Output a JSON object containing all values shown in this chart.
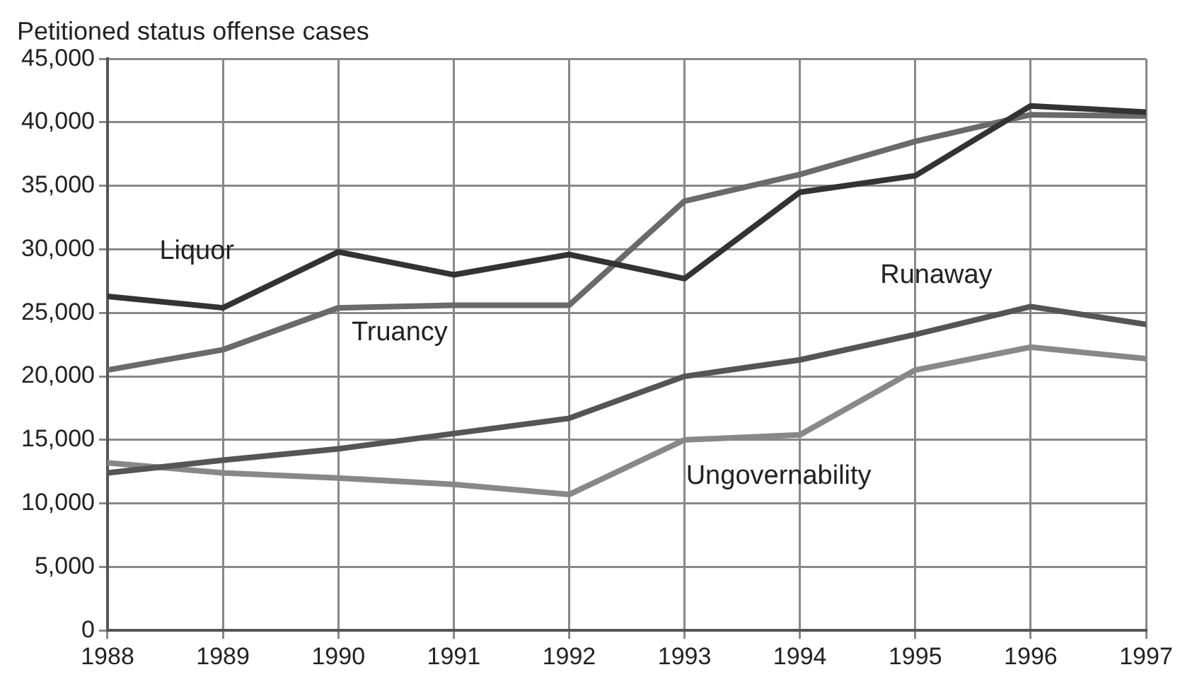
{
  "chart_data": {
    "type": "line",
    "title": "Petitioned status offense cases",
    "x": [
      1988,
      1989,
      1990,
      1991,
      1992,
      1993,
      1994,
      1995,
      1996,
      1997
    ],
    "xlim": [
      1988,
      1997
    ],
    "xticks": [
      1988,
      1989,
      1990,
      1991,
      1992,
      1993,
      1994,
      1995,
      1996,
      1997
    ],
    "ylim": [
      0,
      45000
    ],
    "yticks": [
      {
        "value": 0,
        "label": "0"
      },
      {
        "value": 5000,
        "label": "5,000"
      },
      {
        "value": 10000,
        "label": "10,000"
      },
      {
        "value": 15000,
        "label": "15,000"
      },
      {
        "value": 20000,
        "label": "20,000"
      },
      {
        "value": 25000,
        "label": "25,000"
      },
      {
        "value": 30000,
        "label": "30,000"
      },
      {
        "value": 35000,
        "label": "35,000"
      },
      {
        "value": 40000,
        "label": "40,000"
      },
      {
        "value": 45000,
        "label": "45,000"
      }
    ],
    "grid": true,
    "legend": false,
    "marker": "none",
    "line_style": "solid",
    "series": [
      {
        "name": "Liquor",
        "color": "#333333",
        "values": [
          26300,
          25400,
          29800,
          28000,
          29600,
          27700,
          34500,
          35800,
          41300,
          40800
        ]
      },
      {
        "name": "Truancy",
        "color": "#6a6a6a",
        "values": [
          20500,
          22100,
          25400,
          25600,
          25600,
          33800,
          35900,
          38500,
          40600,
          40500
        ]
      },
      {
        "name": "Runaway",
        "color": "#555555",
        "values": [
          12400,
          13400,
          14300,
          15500,
          16700,
          20000,
          21300,
          23300,
          25500,
          24100
        ]
      },
      {
        "name": "Ungovernability",
        "color": "#888888",
        "values": [
          13200,
          12400,
          12000,
          11500,
          10700,
          15000,
          15400,
          20500,
          22300,
          21400
        ]
      }
    ]
  }
}
